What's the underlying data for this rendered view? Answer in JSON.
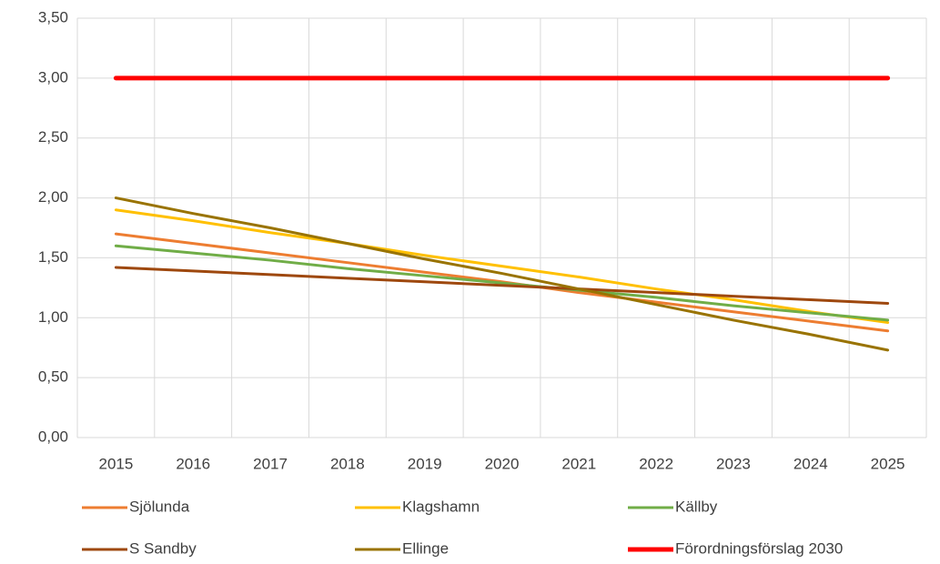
{
  "chart_data": {
    "type": "line",
    "categories": [
      "2015",
      "2016",
      "2017",
      "2018",
      "2019",
      "2020",
      "2021",
      "2022",
      "2023",
      "2024",
      "2025"
    ],
    "series": [
      {
        "name": "Sjölunda",
        "color": "#ed7d31",
        "values": [
          1.7,
          1.62,
          1.54,
          1.46,
          1.38,
          1.3,
          1.21,
          1.13,
          1.05,
          0.97,
          0.89
        ]
      },
      {
        "name": "Klagshamn",
        "color": "#ffc000",
        "values": [
          1.9,
          1.81,
          1.71,
          1.62,
          1.52,
          1.43,
          1.34,
          1.24,
          1.15,
          1.05,
          0.96
        ]
      },
      {
        "name": "Källby",
        "color": "#70ad47",
        "values": [
          1.6,
          1.54,
          1.48,
          1.41,
          1.35,
          1.29,
          1.23,
          1.17,
          1.1,
          1.04,
          0.98
        ]
      },
      {
        "name": "S Sandby",
        "color": "#9e480e",
        "values": [
          1.42,
          1.39,
          1.36,
          1.33,
          1.3,
          1.27,
          1.24,
          1.21,
          1.18,
          1.15,
          1.12
        ]
      },
      {
        "name": "Ellinge",
        "color": "#997300",
        "values": [
          2.0,
          1.87,
          1.75,
          1.62,
          1.49,
          1.37,
          1.24,
          1.11,
          0.98,
          0.86,
          0.73
        ]
      },
      {
        "name": "Förordningsförslag 2030",
        "color": "#ff0000",
        "values": [
          3.0,
          3.0,
          3.0,
          3.0,
          3.0,
          3.0,
          3.0,
          3.0,
          3.0,
          3.0,
          3.0
        ]
      }
    ],
    "ylim": [
      0,
      3.5
    ],
    "yticks": [
      {
        "value": 0,
        "label": "0,00"
      },
      {
        "value": 0.5,
        "label": "0,50"
      },
      {
        "value": 1,
        "label": "1,00"
      },
      {
        "value": 1.5,
        "label": "1,50"
      },
      {
        "value": 2,
        "label": "2,00"
      },
      {
        "value": 2.5,
        "label": "2,50"
      },
      {
        "value": 3,
        "label": "3,00"
      },
      {
        "value": 3.5,
        "label": "3,50"
      }
    ],
    "grid": true,
    "legend": "bottom"
  }
}
